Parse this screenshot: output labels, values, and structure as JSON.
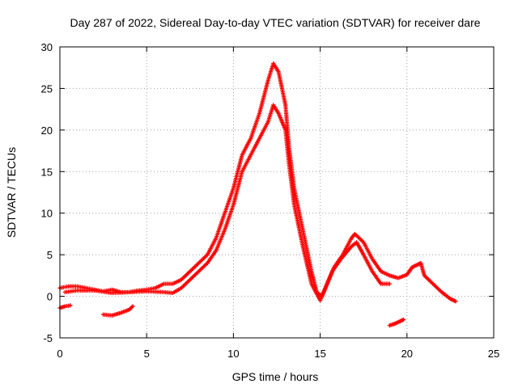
{
  "chart_data": {
    "type": "scatter",
    "title": "Day 287 of 2022, Sidereal Day-to-day VTEC variation (SDTVAR) for receiver dare",
    "xlabel": "GPS time / hours",
    "ylabel": "SDTVAR / TECUs",
    "xlim": [
      0,
      25
    ],
    "ylim": [
      -5,
      30
    ],
    "xticks": [
      0,
      5,
      10,
      15,
      20,
      25
    ],
    "yticks": [
      -5,
      0,
      5,
      10,
      15,
      20,
      25,
      30
    ],
    "grid": true,
    "marker": "+",
    "color": "#ff0000",
    "series": [
      {
        "name": "main-upper",
        "points": [
          [
            0,
            1
          ],
          [
            0.5,
            1.2
          ],
          [
            1,
            1.2
          ],
          [
            1.5,
            1
          ],
          [
            2,
            0.8
          ],
          [
            2.5,
            0.6
          ],
          [
            3,
            0.8
          ],
          [
            3.5,
            0.5
          ],
          [
            4,
            0.5
          ],
          [
            4.5,
            0.7
          ],
          [
            5,
            0.8
          ],
          [
            5.5,
            1
          ],
          [
            6,
            1.5
          ],
          [
            6.5,
            1.5
          ],
          [
            7,
            2
          ],
          [
            7.5,
            3
          ],
          [
            8,
            4
          ],
          [
            8.5,
            5
          ],
          [
            9,
            7
          ],
          [
            9.5,
            10
          ],
          [
            10,
            13
          ],
          [
            10.5,
            17
          ],
          [
            11,
            19
          ],
          [
            11.5,
            22
          ],
          [
            12,
            26
          ],
          [
            12.3,
            28
          ],
          [
            12.6,
            27
          ],
          [
            13,
            23
          ],
          [
            13.2,
            18
          ],
          [
            13.5,
            13
          ],
          [
            14,
            8
          ],
          [
            14.5,
            3
          ],
          [
            14.8,
            0.5
          ],
          [
            15.1,
            0
          ],
          [
            15.4,
            1.5
          ],
          [
            15.8,
            3.5
          ],
          [
            16.3,
            5
          ],
          [
            16.8,
            7
          ],
          [
            17,
            7.5
          ],
          [
            17.5,
            6.5
          ],
          [
            18,
            4.5
          ],
          [
            18.5,
            3
          ],
          [
            19,
            2.5
          ],
          [
            19.5,
            2.2
          ],
          [
            20,
            2.6
          ],
          [
            20.3,
            3.5
          ],
          [
            20.6,
            3.8
          ],
          [
            20.8,
            4
          ],
          [
            21,
            2.5
          ],
          [
            21.5,
            1.5
          ],
          [
            22,
            0.5
          ],
          [
            22.5,
            -0.3
          ],
          [
            22.8,
            -0.6
          ]
        ]
      },
      {
        "name": "main-lower",
        "points": [
          [
            0.3,
            0.5
          ],
          [
            1,
            0.7
          ],
          [
            2,
            0.7
          ],
          [
            3,
            0.4
          ],
          [
            4,
            0.5
          ],
          [
            5,
            0.6
          ],
          [
            6,
            0.5
          ],
          [
            6.5,
            0.4
          ],
          [
            7,
            1
          ],
          [
            7.5,
            2
          ],
          [
            8,
            3
          ],
          [
            8.5,
            4
          ],
          [
            9,
            5.5
          ],
          [
            9.5,
            8
          ],
          [
            10,
            11
          ],
          [
            10.5,
            15
          ],
          [
            11,
            17
          ],
          [
            11.5,
            19
          ],
          [
            12,
            21
          ],
          [
            12.3,
            23
          ],
          [
            12.6,
            22
          ],
          [
            13,
            20
          ],
          [
            13.2,
            16
          ],
          [
            13.5,
            11
          ],
          [
            14,
            6
          ],
          [
            14.5,
            1.5
          ],
          [
            15,
            -0.5
          ],
          [
            15.3,
            1
          ],
          [
            15.7,
            3
          ],
          [
            16.2,
            4.5
          ],
          [
            16.8,
            6
          ],
          [
            17.1,
            6.5
          ],
          [
            17.5,
            5
          ],
          [
            18,
            3
          ],
          [
            18.5,
            1.5
          ],
          [
            19,
            1.5
          ]
        ]
      },
      {
        "name": "outliers",
        "points": [
          [
            0,
            -1.4
          ],
          [
            0.3,
            -1.2
          ],
          [
            0.6,
            -1.1
          ],
          [
            2.5,
            -2.2
          ],
          [
            3,
            -2.3
          ],
          [
            3.5,
            -2
          ],
          [
            4,
            -1.6
          ],
          [
            4.2,
            -1.2
          ],
          [
            19,
            -3.5
          ],
          [
            19.3,
            -3.3
          ],
          [
            19.6,
            -3
          ],
          [
            19.8,
            -2.8
          ]
        ]
      }
    ]
  }
}
